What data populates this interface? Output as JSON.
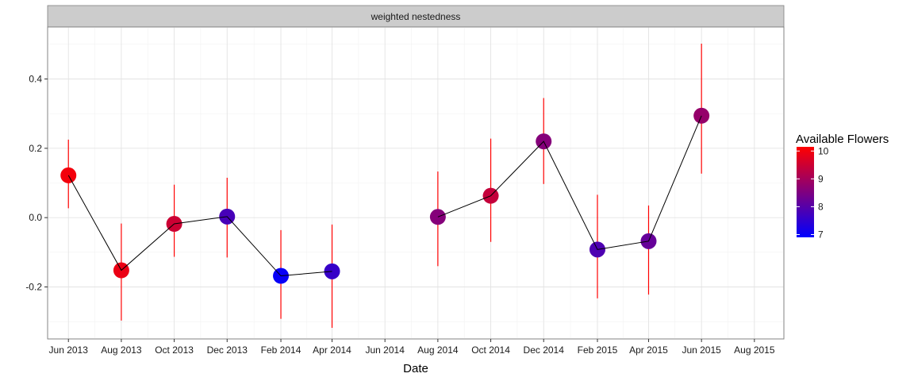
{
  "chart_data": {
    "type": "scatter",
    "facet_title": "weighted nestedness",
    "xlabel": "Date",
    "ylabel": "",
    "ylim": [
      -0.35,
      0.55
    ],
    "y_ticks": [
      -0.2,
      0.0,
      0.2,
      0.4
    ],
    "y_tick_labels": [
      "-0.2",
      "0.0",
      "0.2",
      "0.4"
    ],
    "x_range": [
      "2013-05-08",
      "2015-09-04"
    ],
    "x_ticks": [
      "2013-06-01",
      "2013-08-01",
      "2013-10-01",
      "2013-12-01",
      "2014-02-01",
      "2014-04-01",
      "2014-06-01",
      "2014-08-01",
      "2014-10-01",
      "2014-12-01",
      "2015-02-01",
      "2015-04-01",
      "2015-06-01",
      "2015-08-01"
    ],
    "x_tick_labels": [
      "Jun 2013",
      "Aug 2013",
      "Oct 2013",
      "Dec 2013",
      "Feb 2014",
      "Apr 2014",
      "Jun 2014",
      "Aug 2014",
      "Oct 2014",
      "Dec 2014",
      "Feb 2015",
      "Apr 2015",
      "Jun 2015",
      "Aug 2015"
    ],
    "grid": true,
    "connecting_line_color": "#000000",
    "errorbar_color": "#ff0000",
    "points": [
      {
        "x": "2013-06-01",
        "y": 0.122,
        "lo": 0.027,
        "hi": 0.225,
        "flowers": 10.0
      },
      {
        "x": "2013-08-01",
        "y": -0.152,
        "lo": -0.297,
        "hi": -0.017,
        "flowers": 9.9
      },
      {
        "x": "2013-10-01",
        "y": -0.018,
        "lo": -0.113,
        "hi": 0.095,
        "flowers": 9.5
      },
      {
        "x": "2013-12-01",
        "y": 0.003,
        "lo": -0.115,
        "hi": 0.115,
        "flowers": 7.8
      },
      {
        "x": "2014-02-01",
        "y": -0.168,
        "lo": -0.292,
        "hi": -0.036,
        "flowers": 7.0
      },
      {
        "x": "2014-04-01",
        "y": -0.155,
        "lo": -0.318,
        "hi": -0.02,
        "flowers": 7.6
      },
      {
        "x": "2014-08-01",
        "y": 0.002,
        "lo": -0.14,
        "hi": 0.133,
        "flowers": 8.6
      },
      {
        "x": "2014-10-01",
        "y": 0.063,
        "lo": -0.07,
        "hi": 0.228,
        "flowers": 9.4
      },
      {
        "x": "2014-12-01",
        "y": 0.22,
        "lo": 0.097,
        "hi": 0.345,
        "flowers": 8.6
      },
      {
        "x": "2015-02-01",
        "y": -0.092,
        "lo": -0.233,
        "hi": 0.066,
        "flowers": 7.9
      },
      {
        "x": "2015-04-01",
        "y": -0.068,
        "lo": -0.222,
        "hi": 0.035,
        "flowers": 8.2
      },
      {
        "x": "2015-06-01",
        "y": 0.294,
        "lo": 0.127,
        "hi": 0.502,
        "flowers": 8.8
      }
    ],
    "legend": {
      "title": "Available Flowers",
      "position": "right",
      "min": 6.9,
      "max": 10.15,
      "low_color": "#0000ff",
      "high_color": "#ff0000",
      "ticks": [
        7,
        8,
        9,
        10
      ],
      "tick_labels": [
        "7",
        "8",
        "9",
        "10"
      ]
    }
  }
}
